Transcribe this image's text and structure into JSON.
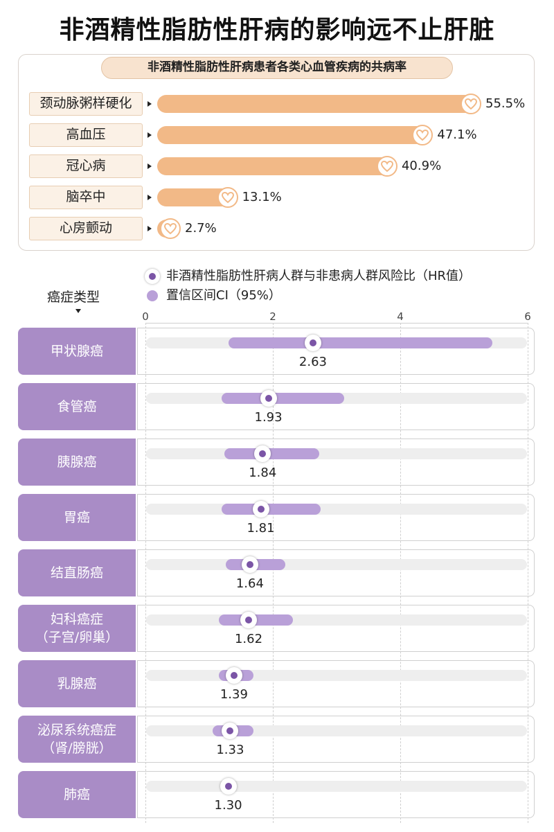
{
  "title": "非酒精性脂肪性肝病的影响远不止肝脏",
  "cardio": {
    "subtitle": "非酒精性脂肪性肝病患者各类心血管疾病的共病率",
    "icon": "heart-icon",
    "bar_color": "#f2b987",
    "items": [
      {
        "label": "颈动脉粥样硬化",
        "value": 55.5,
        "value_label": "55.5%"
      },
      {
        "label": "高血压",
        "value": 47.1,
        "value_label": "47.1%"
      },
      {
        "label": "冠心病",
        "value": 40.9,
        "value_label": "40.9%"
      },
      {
        "label": "脑卒中",
        "value": 13.1,
        "value_label": "13.1%"
      },
      {
        "label": "心房颤动",
        "value": 2.7,
        "value_label": "2.7%"
      }
    ]
  },
  "cancer": {
    "heading": "癌症类型",
    "legend_hr": "非酒精性脂肪性肝病人群与非患病人群风险比（HR值）",
    "legend_ci": "置信区间CI（95%）",
    "accent": "#7b55a6",
    "ci_color": "#b9a0d8"
  },
  "chart_data": [
    {
      "type": "bar",
      "title": "非酒精性脂肪性肝病患者各类心血管疾病的共病率",
      "categories": [
        "颈动脉粥样硬化",
        "高血压",
        "冠心病",
        "脑卒中",
        "心房颤动"
      ],
      "values": [
        55.5,
        47.1,
        40.9,
        13.1,
        2.7
      ],
      "unit": "%"
    },
    {
      "type": "scatter",
      "xlim": [
        0,
        6
      ],
      "x_ticks": [
        "0",
        "2",
        "4",
        "6"
      ],
      "grid": true,
      "categories": [
        "甲状腺癌",
        "食管癌",
        "胰腺癌",
        "胃癌",
        "结直肠癌",
        "妇科癌症\n（子宫/卵巢）",
        "乳腺癌",
        "泌尿系统癌症\n（肾/膀胱）",
        "肺癌"
      ],
      "series": [
        {
          "name": "非酒精性脂肪性肝病人群与非患病人群风险比（HR值）",
          "values": [
            2.63,
            1.93,
            1.84,
            1.81,
            1.64,
            1.62,
            1.39,
            1.33,
            1.3
          ],
          "labels": [
            "2.63",
            "1.93",
            "1.84",
            "1.81",
            "1.64",
            "1.62",
            "1.39",
            "1.33",
            "1.30"
          ]
        },
        {
          "name": "置信区间CI（95%）",
          "intervals": [
            [
              1.3,
              5.45
            ],
            [
              1.2,
              3.12
            ],
            [
              1.24,
              2.73
            ],
            [
              1.2,
              2.75
            ],
            [
              1.26,
              2.2
            ],
            [
              1.15,
              2.32
            ],
            [
              1.15,
              1.7
            ],
            [
              1.05,
              1.7
            ],
            [
              1.18,
              1.42
            ]
          ]
        }
      ]
    }
  ]
}
